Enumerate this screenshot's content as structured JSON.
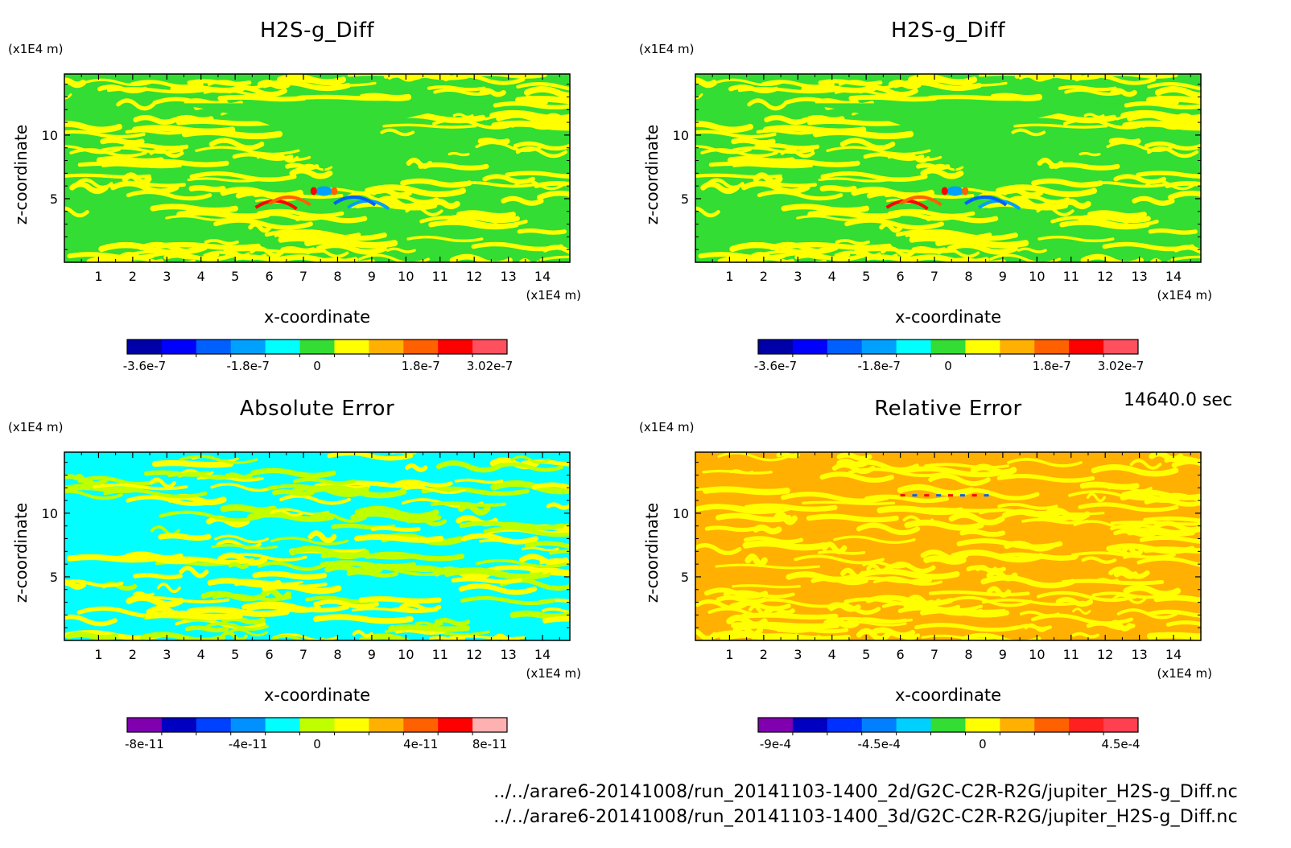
{
  "chart_data": [
    {
      "type": "heatmap",
      "title": "H2S-g_Diff",
      "xlabel": "x-coordinate",
      "ylabel": "z-coordinate",
      "x_unit": "(x1E4 m)",
      "y_unit": "(x1E4 m)",
      "xlim": [
        0,
        14.8
      ],
      "ylim": [
        0,
        14.8
      ],
      "x_ticks": [
        1,
        2,
        3,
        4,
        5,
        6,
        7,
        8,
        9,
        10,
        11,
        12,
        13,
        14
      ],
      "y_ticks": [
        5,
        10
      ],
      "colorbar": {
        "colors": [
          "#0000a8",
          "#0000ff",
          "#0060ff",
          "#00a0ff",
          "#00ffff",
          "#33dd33",
          "#ffff00",
          "#ffb000",
          "#ff6000",
          "#ff0000",
          "#ff5060"
        ],
        "tick_labels": [
          "-3.6e-7",
          "-1.8e-7",
          "0",
          "1.8e-7",
          "3.02e-7"
        ]
      },
      "field_colors": [
        "#33dd33",
        "#ffff00"
      ],
      "accent_colors": [
        "#ff0000",
        "#ff6000",
        "#00a0ff",
        "#0060ff",
        "#00ffff"
      ]
    },
    {
      "type": "heatmap",
      "title": "H2S-g_Diff",
      "xlabel": "x-coordinate",
      "ylabel": "z-coordinate",
      "x_unit": "(x1E4 m)",
      "y_unit": "(x1E4 m)",
      "xlim": [
        0,
        14.8
      ],
      "ylim": [
        0,
        14.8
      ],
      "x_ticks": [
        1,
        2,
        3,
        4,
        5,
        6,
        7,
        8,
        9,
        10,
        11,
        12,
        13,
        14
      ],
      "y_ticks": [
        5,
        10
      ],
      "colorbar": {
        "colors": [
          "#0000a8",
          "#0000ff",
          "#0060ff",
          "#00a0ff",
          "#00ffff",
          "#33dd33",
          "#ffff00",
          "#ffb000",
          "#ff6000",
          "#ff0000",
          "#ff5060"
        ],
        "tick_labels": [
          "-3.6e-7",
          "-1.8e-7",
          "0",
          "1.8e-7",
          "3.02e-7"
        ]
      },
      "field_colors": [
        "#33dd33",
        "#ffff00"
      ],
      "accent_colors": [
        "#ff0000",
        "#ff6000",
        "#00a0ff",
        "#0060ff",
        "#00ffff"
      ]
    },
    {
      "type": "heatmap",
      "title": "Absolute Error",
      "xlabel": "x-coordinate",
      "ylabel": "z-coordinate",
      "x_unit": "(x1E4 m)",
      "y_unit": "(x1E4 m)",
      "xlim": [
        0,
        14.8
      ],
      "ylim": [
        0,
        14.8
      ],
      "x_ticks": [
        1,
        2,
        3,
        4,
        5,
        6,
        7,
        8,
        9,
        10,
        11,
        12,
        13,
        14
      ],
      "y_ticks": [
        5,
        10
      ],
      "colorbar": {
        "colors": [
          "#8000b0",
          "#0000c0",
          "#0040ff",
          "#0090ff",
          "#00ffff",
          "#c0ff00",
          "#ffff00",
          "#ffb000",
          "#ff6000",
          "#ff0000",
          "#ffb0b0"
        ],
        "tick_labels": [
          "-8e-11",
          "-4e-11",
          "0",
          "4e-11",
          "8e-11"
        ]
      },
      "field_colors": [
        "#00ffff",
        "#c0ff00",
        "#ffff00"
      ],
      "accent_colors": []
    },
    {
      "type": "heatmap",
      "title": "Relative Error",
      "xlabel": "x-coordinate",
      "ylabel": "z-coordinate",
      "x_unit": "(x1E4 m)",
      "y_unit": "(x1E4 m)",
      "xlim": [
        0,
        14.8
      ],
      "ylim": [
        0,
        14.8
      ],
      "x_ticks": [
        1,
        2,
        3,
        4,
        5,
        6,
        7,
        8,
        9,
        10,
        11,
        12,
        13,
        14
      ],
      "y_ticks": [
        5,
        10
      ],
      "colorbar": {
        "colors": [
          "#8000b0",
          "#0000c0",
          "#0030ff",
          "#0080ff",
          "#00d0ff",
          "#33dd33",
          "#ffff00",
          "#ffb000",
          "#ff6000",
          "#ff2020",
          "#ff4050"
        ],
        "tick_labels": [
          "-9e-4",
          "-4.5e-4",
          "0",
          "4.5e-4"
        ]
      },
      "field_colors": [
        "#ffb000",
        "#ffff00"
      ],
      "accent_colors": [
        "#ff0000",
        "#0060ff"
      ]
    }
  ],
  "time_label": "14640.0 sec",
  "footer": [
    "../../arare6-20141008/run_20141103-1400_2d/G2C-C2R-R2G/jupiter_H2S-g_Diff.nc",
    "../../arare6-20141008/run_20141103-1400_3d/G2C-C2R-R2G/jupiter_H2S-g_Diff.nc"
  ]
}
